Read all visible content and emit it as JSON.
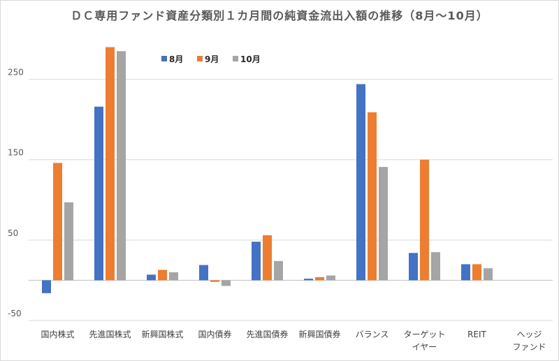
{
  "chart_data": {
    "type": "bar",
    "title": "ＤＣ専用ファンド資産分類別１カ月間の純資金流出入額の推移（8月～10月）",
    "categories": [
      [
        "国内株式"
      ],
      [
        "先進国株式"
      ],
      [
        "新興国株式"
      ],
      [
        "国内債券"
      ],
      [
        "先進国債券"
      ],
      [
        "新興国債券"
      ],
      [
        "バランス"
      ],
      [
        "ターゲット",
        "イヤー"
      ],
      [
        "REIT"
      ],
      [
        "ヘッジ",
        "ファンド"
      ]
    ],
    "series": [
      {
        "name": "8月",
        "color": "#4472c4",
        "values": [
          -16,
          216,
          7,
          19,
          48,
          2,
          244,
          34,
          20,
          0
        ]
      },
      {
        "name": "9月",
        "color": "#ed7d31",
        "values": [
          146,
          290,
          13,
          -2,
          56,
          4,
          209,
          150,
          20,
          0
        ]
      },
      {
        "name": "10月",
        "color": "#a5a5a5",
        "values": [
          97,
          285,
          10,
          -7,
          24,
          6,
          141,
          35,
          15,
          0
        ]
      }
    ],
    "yticks": [
      -50,
      50,
      150,
      250
    ],
    "ylim": [
      -50,
      300
    ],
    "grid": true,
    "legend_position": "top-left"
  }
}
